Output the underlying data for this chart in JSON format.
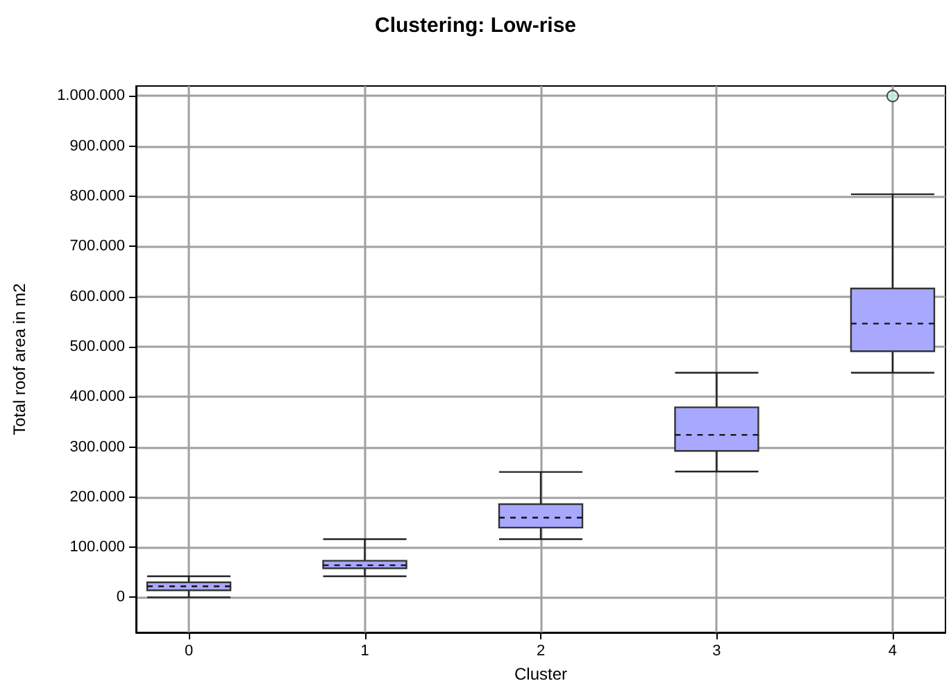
{
  "chart_data": {
    "type": "box",
    "title": "Clustering: Low-rise",
    "xlabel": "Cluster",
    "ylabel": "Total roof area in m2",
    "categories": [
      "0",
      "1",
      "2",
      "3",
      "4"
    ],
    "boxes": [
      {
        "low": 0,
        "q1": 14000,
        "median": 22000,
        "q3": 30000,
        "high": 42000
      },
      {
        "low": 42000,
        "q1": 58000,
        "median": 64000,
        "q3": 73000,
        "high": 116000
      },
      {
        "low": 116000,
        "q1": 139000,
        "median": 159000,
        "q3": 186000,
        "high": 250000
      },
      {
        "low": 251000,
        "q1": 292000,
        "median": 324000,
        "q3": 379000,
        "high": 448000
      },
      {
        "low": 448000,
        "q1": 491000,
        "median": 546000,
        "q3": 616000,
        "high": 804000,
        "outliers": [
          1000000
        ]
      }
    ],
    "color": "#a8a8ff",
    "ylim": [
      -70000,
      1020000
    ],
    "yticks": [
      {
        "value": 0,
        "label": "0"
      },
      {
        "value": 100000,
        "label": "100.000"
      },
      {
        "value": 200000,
        "label": "200.000"
      },
      {
        "value": 300000,
        "label": "300.000"
      },
      {
        "value": 400000,
        "label": "400.000"
      },
      {
        "value": 500000,
        "label": "500.000"
      },
      {
        "value": 600000,
        "label": "600.000"
      },
      {
        "value": 700000,
        "label": "700.000"
      },
      {
        "value": 800000,
        "label": "800.000"
      },
      {
        "value": 900000,
        "label": "900.000"
      },
      {
        "value": 1000000,
        "label": "1.000.000"
      }
    ],
    "grid": true
  }
}
